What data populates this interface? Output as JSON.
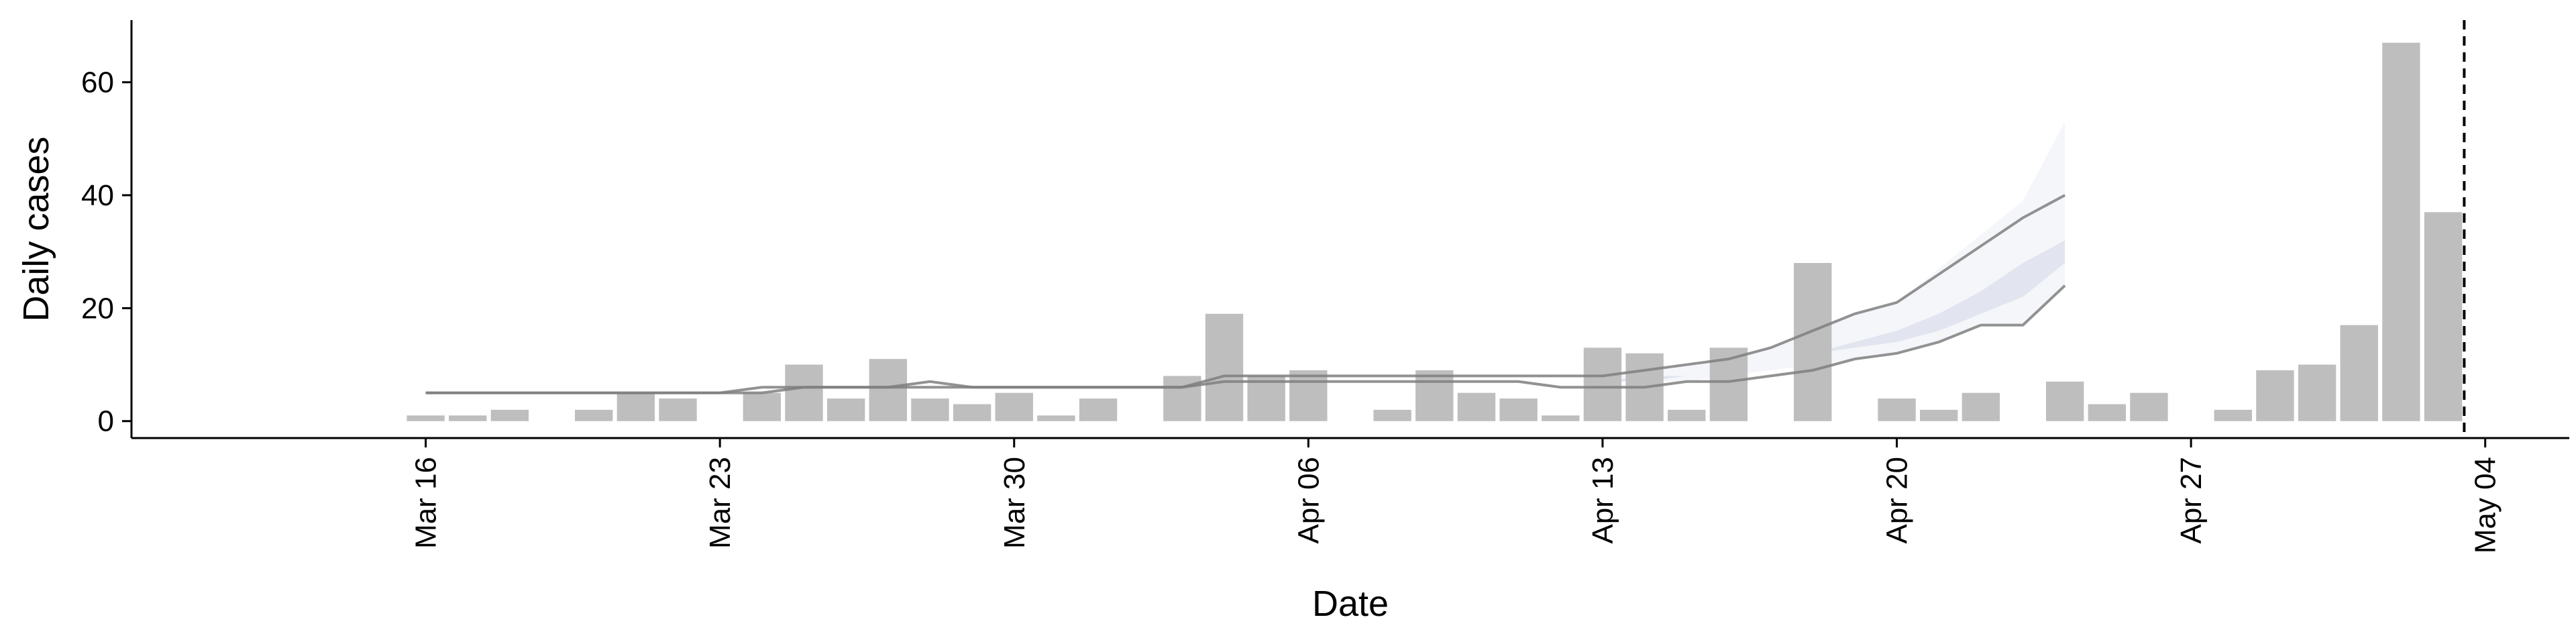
{
  "chart_data": {
    "type": "bar",
    "xlabel": "Date",
    "ylabel": "Daily cases",
    "x_dates": [
      "2020-03-16",
      "2020-03-17",
      "2020-03-18",
      "2020-03-19",
      "2020-03-20",
      "2020-03-21",
      "2020-03-22",
      "2020-03-23",
      "2020-03-24",
      "2020-03-25",
      "2020-03-26",
      "2020-03-27",
      "2020-03-28",
      "2020-03-29",
      "2020-03-30",
      "2020-03-31",
      "2020-04-01",
      "2020-04-02",
      "2020-04-03",
      "2020-04-04",
      "2020-04-05",
      "2020-04-06",
      "2020-04-07",
      "2020-04-08",
      "2020-04-09",
      "2020-04-10",
      "2020-04-11",
      "2020-04-12",
      "2020-04-13",
      "2020-04-14",
      "2020-04-15",
      "2020-04-16",
      "2020-04-17",
      "2020-04-18",
      "2020-04-19",
      "2020-04-20",
      "2020-04-21",
      "2020-04-22",
      "2020-04-23",
      "2020-04-24",
      "2020-04-25",
      "2020-04-26",
      "2020-04-27",
      "2020-04-28",
      "2020-04-29",
      "2020-04-30",
      "2020-05-01",
      "2020-05-02",
      "2020-05-03"
    ],
    "daily_cases": [
      1,
      1,
      2,
      0,
      2,
      5,
      4,
      0,
      5,
      10,
      4,
      11,
      4,
      3,
      5,
      1,
      4,
      0,
      8,
      19,
      8,
      9,
      0,
      2,
      9,
      5,
      4,
      1,
      13,
      12,
      2,
      13,
      0,
      28,
      0,
      4,
      2,
      5,
      0,
      7,
      3,
      5,
      0,
      2,
      9,
      10,
      17,
      67,
      37
    ],
    "lines": [
      {
        "dates": [
          "2020-03-16",
          "2020-03-23",
          "2020-03-24",
          "2020-03-25",
          "2020-03-26",
          "2020-03-27",
          "2020-03-28",
          "2020-03-29",
          "2020-03-30",
          "2020-04-03",
          "2020-04-04",
          "2020-04-05",
          "2020-04-12",
          "2020-04-13",
          "2020-04-14",
          "2020-04-15",
          "2020-04-16",
          "2020-04-17",
          "2020-04-18",
          "2020-04-19",
          "2020-04-20",
          "2020-04-21",
          "2020-04-22",
          "2020-04-23",
          "2020-04-24"
        ],
        "values": [
          5,
          5,
          6,
          6,
          6,
          6,
          7,
          6,
          6,
          6,
          8,
          8,
          8,
          8,
          9,
          10,
          11,
          13,
          16,
          19,
          21,
          26,
          31,
          36,
          40
        ]
      },
      {
        "dates": [
          "2020-03-16",
          "2020-03-23",
          "2020-03-24",
          "2020-03-25",
          "2020-03-26",
          "2020-03-27",
          "2020-03-28",
          "2020-03-29",
          "2020-03-30",
          "2020-04-03",
          "2020-04-04",
          "2020-04-05",
          "2020-04-11",
          "2020-04-12",
          "2020-04-13",
          "2020-04-14",
          "2020-04-15",
          "2020-04-16",
          "2020-04-17",
          "2020-04-18",
          "2020-04-19",
          "2020-04-20",
          "2020-04-21",
          "2020-04-22",
          "2020-04-23",
          "2020-04-24"
        ],
        "values": [
          5,
          5,
          5,
          6,
          6,
          6,
          6,
          6,
          6,
          6,
          7,
          7,
          7,
          6,
          6,
          6,
          7,
          7,
          8,
          9,
          11,
          12,
          14,
          17,
          17,
          24
        ]
      }
    ],
    "bands": [
      {
        "opacity": 0.25,
        "dates": [
          "2020-04-13",
          "2020-04-14",
          "2020-04-15",
          "2020-04-16",
          "2020-04-17",
          "2020-04-18",
          "2020-04-19",
          "2020-04-20",
          "2020-04-21",
          "2020-04-22",
          "2020-04-23",
          "2020-04-24"
        ],
        "lower": [
          7,
          7,
          7,
          8,
          9,
          10,
          11,
          12,
          14,
          17,
          17,
          24
        ],
        "upper": [
          8,
          9,
          10,
          11,
          13,
          16,
          19,
          21,
          27,
          33,
          39,
          53
        ]
      },
      {
        "opacity": 0.6,
        "dates": [
          "2020-04-13",
          "2020-04-14",
          "2020-04-15",
          "2020-04-16",
          "2020-04-17",
          "2020-04-18",
          "2020-04-19",
          "2020-04-20",
          "2020-04-21",
          "2020-04-22",
          "2020-04-23",
          "2020-04-24"
        ],
        "lower": [
          7,
          7,
          8,
          9,
          10,
          12,
          13,
          14,
          16,
          19,
          22,
          28
        ],
        "upper": [
          7,
          8,
          8,
          9,
          10,
          12,
          14,
          16,
          19,
          23,
          28,
          32
        ]
      }
    ],
    "vline_date": "2020-05-03",
    "xlim": [
      "2020-03-09",
      "2020-05-06"
    ],
    "ylim": [
      -3,
      71
    ],
    "yticks": [
      0,
      20,
      40,
      60
    ],
    "xticks": [
      {
        "date": "2020-03-16",
        "label": "Mar 16"
      },
      {
        "date": "2020-03-23",
        "label": "Mar 23"
      },
      {
        "date": "2020-03-30",
        "label": "Mar 30"
      },
      {
        "date": "2020-04-06",
        "label": "Apr 06"
      },
      {
        "date": "2020-04-13",
        "label": "Apr 13"
      },
      {
        "date": "2020-04-20",
        "label": "Apr 20"
      },
      {
        "date": "2020-04-27",
        "label": "Apr 27"
      },
      {
        "date": "2020-05-04",
        "label": "May 04"
      }
    ],
    "grid": false,
    "colors": {
      "bar": "#bebebe",
      "line": "#7f7f7f",
      "band": "#d5dae8",
      "vline": "#000000"
    }
  }
}
